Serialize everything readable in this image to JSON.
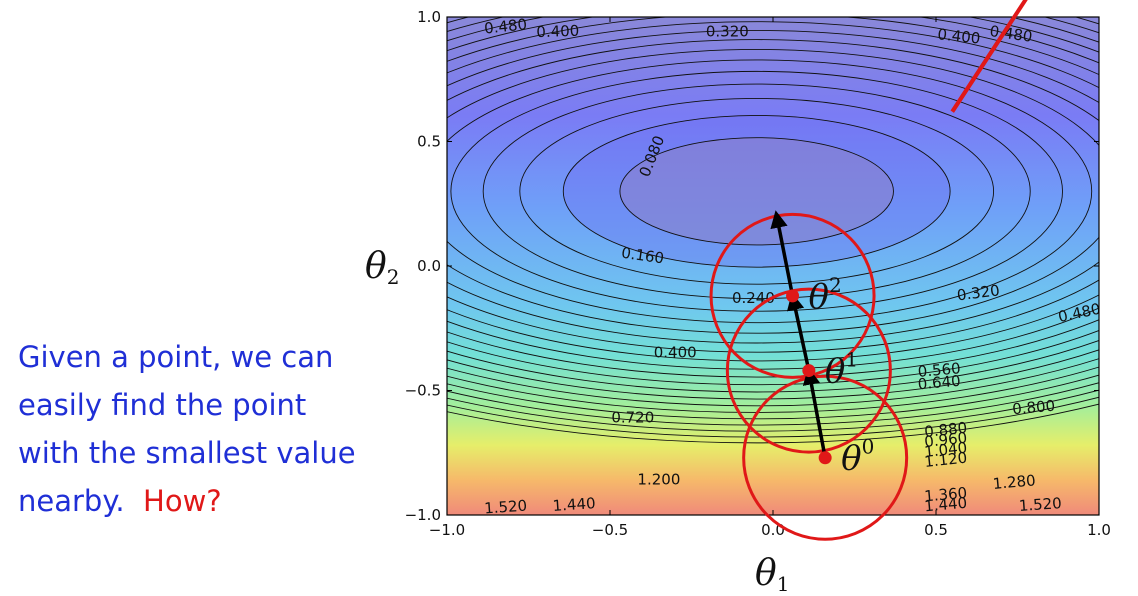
{
  "caption": {
    "line1": "Given a point, we can",
    "line2": "easily find the point",
    "line3": "with the smallest value",
    "line4": "nearby.",
    "question": "How?"
  },
  "chart_data": {
    "type": "contour",
    "xlim": [
      -1.0,
      1.0
    ],
    "ylim": [
      -1.0,
      1.0
    ],
    "xticks": [
      "−1.0",
      "−0.5",
      "0.0",
      "0.5",
      "1.0"
    ],
    "yticks": [
      "1.0",
      "0.5",
      "0.0",
      "−0.5",
      "−1.0"
    ],
    "xtick_values": [
      -1.0,
      -0.5,
      0.0,
      0.5,
      1.0
    ],
    "ytick_values": [
      1.0,
      0.5,
      0.0,
      -0.5,
      -1.0
    ],
    "xlabel": "θ",
    "xlabel_sub": "1",
    "ylabel": "θ",
    "ylabel_sub": "2",
    "minimum": [
      -0.05,
      0.3
    ],
    "level_step": 0.08,
    "filled_levels_shown": [
      0.08,
      0.16
    ],
    "colormap": [
      "#8a88d9",
      "#7a7cf5",
      "#6f9ff8",
      "#6fc7ef",
      "#73e0d6",
      "#a2ee9c",
      "#e6ee6a",
      "#f6b96a",
      "#f08a7a"
    ],
    "contour_labels": [
      {
        "text": "0.480",
        "x": -0.82,
        "y": 0.96,
        "rot": -6
      },
      {
        "text": "0.400",
        "x": -0.66,
        "y": 0.94,
        "rot": -2
      },
      {
        "text": "0.320",
        "x": -0.14,
        "y": 0.94,
        "rot": 0
      },
      {
        "text": "0.400",
        "x": 0.57,
        "y": 0.92,
        "rot": 6
      },
      {
        "text": "0.480",
        "x": 0.73,
        "y": 0.93,
        "rot": 8
      },
      {
        "text": "0.080",
        "x": -0.37,
        "y": 0.44,
        "rot": -68
      },
      {
        "text": "0.160",
        "x": -0.4,
        "y": 0.04,
        "rot": 8
      },
      {
        "text": "0.240",
        "x": -0.06,
        "y": -0.13,
        "rot": 0
      },
      {
        "text": "0.320",
        "x": 0.63,
        "y": -0.11,
        "rot": -7
      },
      {
        "text": "0.480",
        "x": 0.94,
        "y": -0.19,
        "rot": -12
      },
      {
        "text": "0.400",
        "x": -0.3,
        "y": -0.35,
        "rot": 0
      },
      {
        "text": "0.560",
        "x": 0.51,
        "y": -0.42,
        "rot": -5
      },
      {
        "text": "0.640",
        "x": 0.51,
        "y": -0.47,
        "rot": -5
      },
      {
        "text": "0.720",
        "x": -0.43,
        "y": -0.61,
        "rot": 0
      },
      {
        "text": "0.800",
        "x": 0.8,
        "y": -0.57,
        "rot": -5
      },
      {
        "text": "0.880",
        "x": 0.53,
        "y": -0.66,
        "rot": -6
      },
      {
        "text": "0.960",
        "x": 0.53,
        "y": -0.7,
        "rot": -6
      },
      {
        "text": "1.040",
        "x": 0.53,
        "y": -0.74,
        "rot": -6
      },
      {
        "text": "1.120",
        "x": 0.53,
        "y": -0.78,
        "rot": -6
      },
      {
        "text": "1.200",
        "x": -0.35,
        "y": -0.86,
        "rot": 0
      },
      {
        "text": "1.280",
        "x": 0.74,
        "y": -0.87,
        "rot": -5
      },
      {
        "text": "1.360",
        "x": 0.53,
        "y": -0.92,
        "rot": -5
      },
      {
        "text": "1.440",
        "x": 0.53,
        "y": -0.96,
        "rot": -5
      },
      {
        "text": "1.520",
        "x": 0.82,
        "y": -0.96,
        "rot": -4
      },
      {
        "text": "1.520",
        "x": -0.82,
        "y": -0.97,
        "rot": -4
      },
      {
        "text": "1.440",
        "x": -0.61,
        "y": -0.96,
        "rot": -4
      }
    ],
    "path_points": [
      {
        "name": "θ",
        "sup": "0",
        "x": 0.16,
        "y": -0.77
      },
      {
        "name": "θ",
        "sup": "1",
        "x": 0.11,
        "y": -0.42
      },
      {
        "name": "θ",
        "sup": "2",
        "x": 0.06,
        "y": -0.12
      }
    ],
    "arrow_end": [
      0.01,
      0.21
    ],
    "circle_radius_x": 0.25,
    "gradient_line": [
      [
        0.55,
        0.62
      ],
      [
        0.78,
        1.08
      ]
    ],
    "colors": {
      "circle": "#e01818",
      "arrow": "#000000",
      "contour": "#111111"
    }
  }
}
